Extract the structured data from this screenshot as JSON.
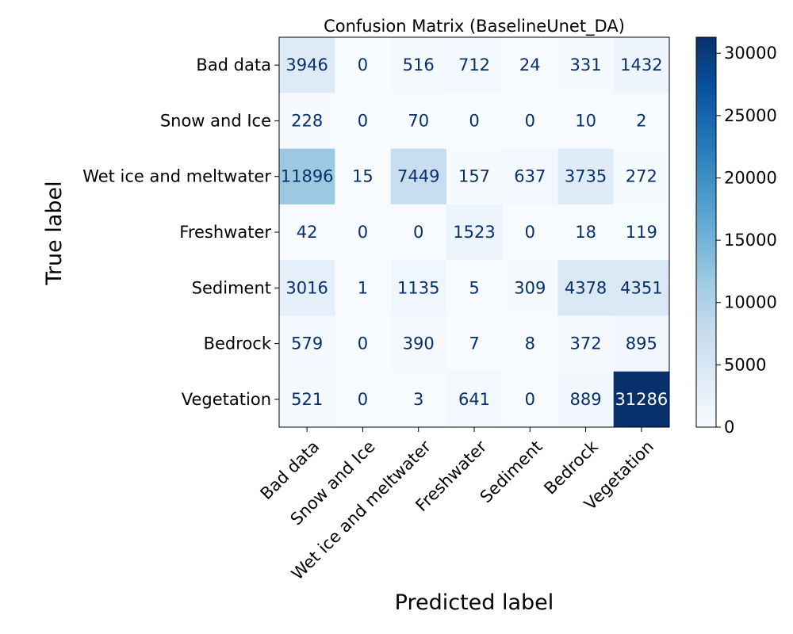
{
  "chart_data": {
    "type": "heatmap",
    "title": "Confusion Matrix (BaselineUnet_DA)",
    "xlabel": "Predicted label",
    "ylabel": "True label",
    "row_labels": [
      "Bad data",
      "Snow and Ice",
      "Wet ice and meltwater",
      "Freshwater",
      "Sediment",
      "Bedrock",
      "Vegetation"
    ],
    "col_labels": [
      "Bad data",
      "Snow and Ice",
      "Wet ice and meltwater",
      "Freshwater",
      "Sediment",
      "Bedrock",
      "Vegetation"
    ],
    "values": [
      [
        3946,
        0,
        516,
        712,
        24,
        331,
        1432
      ],
      [
        228,
        0,
        70,
        0,
        0,
        10,
        2
      ],
      [
        11896,
        15,
        7449,
        157,
        637,
        3735,
        272
      ],
      [
        42,
        0,
        0,
        1523,
        0,
        18,
        119
      ],
      [
        3016,
        1,
        1135,
        5,
        309,
        4378,
        4351
      ],
      [
        579,
        0,
        390,
        7,
        8,
        372,
        895
      ],
      [
        521,
        0,
        3,
        641,
        0,
        889,
        31286
      ]
    ],
    "colormap": "Blues",
    "colorbar": {
      "min": 0,
      "max": 31286,
      "ticks": [
        0,
        5000,
        10000,
        15000,
        20000,
        25000,
        30000
      ],
      "tick_labels": [
        "0",
        "5000",
        "10000",
        "15000",
        "20000",
        "25000",
        "30000"
      ]
    },
    "text_color_light": "#ffffff",
    "text_color_dark": "#08306b"
  }
}
